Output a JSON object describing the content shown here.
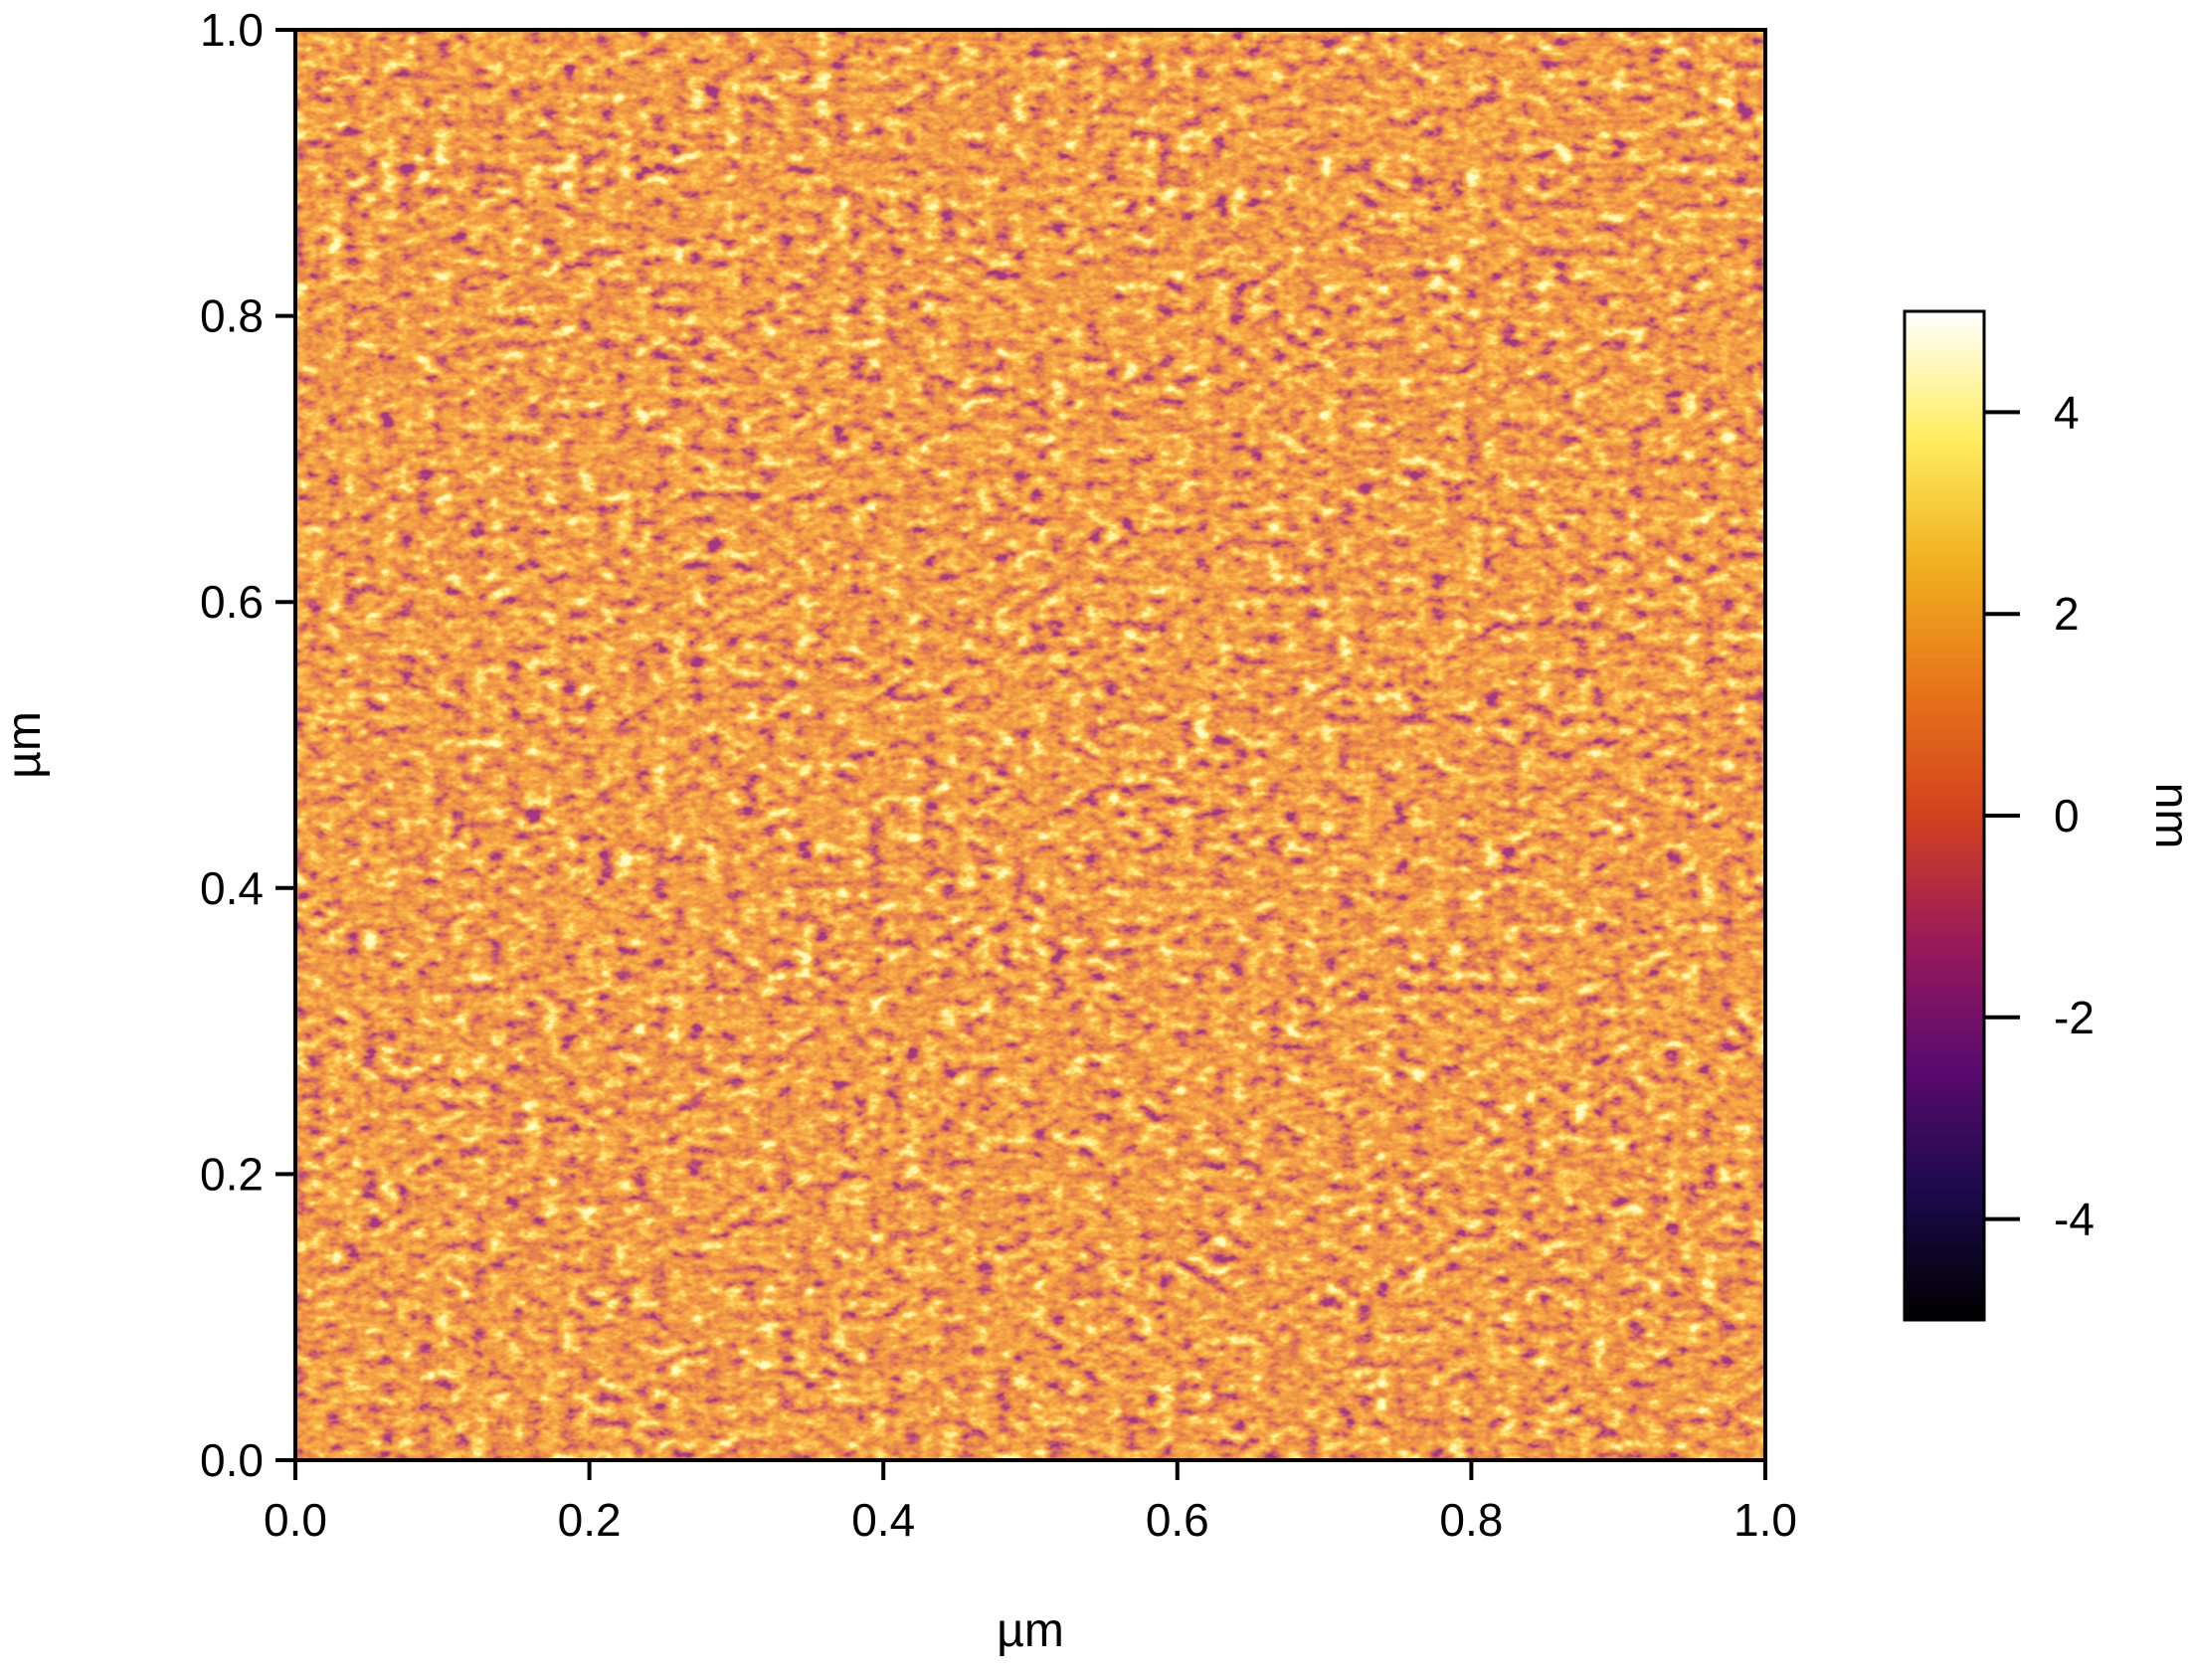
{
  "chart_data": {
    "type": "heatmap",
    "title": "",
    "xlabel": "µm",
    "ylabel": "µm",
    "xlim": [
      0.0,
      1.0
    ],
    "ylim": [
      0.0,
      1.0
    ],
    "x_ticks": [
      "0.0",
      "0.2",
      "0.4",
      "0.6",
      "0.8",
      "1.0"
    ],
    "y_ticks": [
      "0.0",
      "0.2",
      "0.4",
      "0.6",
      "0.8",
      "1.0"
    ],
    "colorbar": {
      "label": "nm",
      "range": [
        -5,
        5
      ],
      "ticks": [
        "4",
        "2",
        "0",
        "-2",
        "-4"
      ],
      "tick_values": [
        4,
        2,
        0,
        -2,
        -4
      ],
      "colors": [
        "#000000",
        "#1a0a4a",
        "#5a0a6e",
        "#9a1a5a",
        "#d2421e",
        "#e8741a",
        "#f0b020",
        "#ffee60",
        "#ffffff"
      ]
    },
    "grid": false,
    "legend": "colorbar-right"
  }
}
